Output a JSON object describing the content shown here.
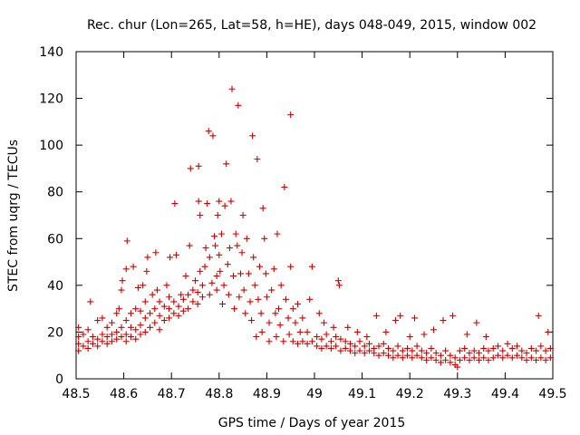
{
  "chart_data": {
    "type": "scatter",
    "title": "Rec. chur (Lon=265, Lat=58, h=HE), days 048-049, 2015, window 002",
    "xlabel": "GPS time / Days of year 2015",
    "ylabel": "STEC from uqrg / TECUs",
    "xlim": [
      48.5,
      49.5
    ],
    "ylim": [
      0,
      140
    ],
    "x_ticks": [
      48.5,
      48.6,
      48.7,
      48.8,
      48.9,
      49.0,
      49.1,
      49.2,
      49.3,
      49.4,
      49.5
    ],
    "x_tick_labels": [
      "48.5",
      "48.6",
      "48.7",
      "48.8",
      "48.9",
      "49",
      "49.1",
      "49.2",
      "49.3",
      "49.4",
      "49.5"
    ],
    "y_ticks": [
      0,
      20,
      40,
      60,
      80,
      100,
      120,
      140
    ],
    "y_tick_labels": [
      "0",
      "20",
      "40",
      "60",
      "80",
      "100",
      "120",
      "140"
    ],
    "grid": false,
    "marker": "+",
    "marker_color": "#cc0000",
    "points": [
      [
        48.505,
        12
      ],
      [
        48.505,
        15
      ],
      [
        48.505,
        18
      ],
      [
        48.505,
        22
      ],
      [
        48.515,
        14
      ],
      [
        48.515,
        19
      ],
      [
        48.525,
        13
      ],
      [
        48.525,
        16
      ],
      [
        48.525,
        21
      ],
      [
        48.53,
        33
      ],
      [
        48.535,
        15
      ],
      [
        48.535,
        18
      ],
      [
        48.545,
        14
      ],
      [
        48.545,
        17
      ],
      [
        48.545,
        25
      ],
      [
        48.555,
        16
      ],
      [
        48.555,
        19
      ],
      [
        48.555,
        26
      ],
      [
        48.565,
        15
      ],
      [
        48.565,
        18
      ],
      [
        48.565,
        22
      ],
      [
        48.575,
        16
      ],
      [
        48.575,
        19
      ],
      [
        48.575,
        24
      ],
      [
        48.585,
        17
      ],
      [
        48.585,
        20
      ],
      [
        48.585,
        28
      ],
      [
        48.59,
        30
      ],
      [
        48.595,
        18
      ],
      [
        48.595,
        22
      ],
      [
        48.595,
        38
      ],
      [
        48.597,
        42
      ],
      [
        48.605,
        16
      ],
      [
        48.605,
        19
      ],
      [
        48.605,
        25
      ],
      [
        48.605,
        47
      ],
      [
        48.607,
        59
      ],
      [
        48.615,
        18
      ],
      [
        48.615,
        22
      ],
      [
        48.615,
        28
      ],
      [
        48.62,
        48
      ],
      [
        48.625,
        17
      ],
      [
        48.625,
        21
      ],
      [
        48.625,
        30
      ],
      [
        48.63,
        39
      ],
      [
        48.635,
        19
      ],
      [
        48.635,
        23
      ],
      [
        48.635,
        29
      ],
      [
        48.64,
        40
      ],
      [
        48.645,
        20
      ],
      [
        48.645,
        26
      ],
      [
        48.645,
        33
      ],
      [
        48.648,
        46
      ],
      [
        48.65,
        52
      ],
      [
        48.655,
        22
      ],
      [
        48.655,
        28
      ],
      [
        48.66,
        36
      ],
      [
        48.665,
        24
      ],
      [
        48.665,
        30
      ],
      [
        48.667,
        54
      ],
      [
        48.67,
        38
      ],
      [
        48.675,
        21
      ],
      [
        48.675,
        27
      ],
      [
        48.675,
        33
      ],
      [
        48.685,
        25
      ],
      [
        48.685,
        31
      ],
      [
        48.69,
        40
      ],
      [
        48.695,
        26
      ],
      [
        48.695,
        30
      ],
      [
        48.695,
        35
      ],
      [
        48.697,
        52
      ],
      [
        48.705,
        28
      ],
      [
        48.705,
        33
      ],
      [
        48.707,
        75
      ],
      [
        48.71,
        53
      ],
      [
        48.715,
        27
      ],
      [
        48.715,
        31
      ],
      [
        48.72,
        36
      ],
      [
        48.725,
        29
      ],
      [
        48.725,
        34
      ],
      [
        48.73,
        44
      ],
      [
        48.735,
        30
      ],
      [
        48.735,
        36
      ],
      [
        48.738,
        57
      ],
      [
        48.74,
        90
      ],
      [
        48.745,
        33
      ],
      [
        48.745,
        38
      ],
      [
        48.75,
        42
      ],
      [
        48.755,
        32
      ],
      [
        48.755,
        37
      ],
      [
        48.757,
        76
      ],
      [
        48.757,
        91
      ],
      [
        48.76,
        46
      ],
      [
        48.76,
        70
      ],
      [
        48.765,
        35
      ],
      [
        48.765,
        40
      ],
      [
        48.77,
        48
      ],
      [
        48.772,
        56
      ],
      [
        48.775,
        75
      ],
      [
        48.778,
        106
      ],
      [
        48.78,
        36
      ],
      [
        48.78,
        52
      ],
      [
        48.785,
        41
      ],
      [
        48.787,
        104
      ],
      [
        48.79,
        61
      ],
      [
        48.792,
        57
      ],
      [
        48.795,
        38
      ],
      [
        48.795,
        44
      ],
      [
        48.797,
        70
      ],
      [
        48.8,
        76
      ],
      [
        48.8,
        53
      ],
      [
        48.802,
        46
      ],
      [
        48.805,
        62
      ],
      [
        48.807,
        32
      ],
      [
        48.81,
        40
      ],
      [
        48.812,
        74
      ],
      [
        48.815,
        92
      ],
      [
        48.818,
        49
      ],
      [
        48.82,
        36
      ],
      [
        48.822,
        56
      ],
      [
        48.825,
        76
      ],
      [
        48.827,
        124
      ],
      [
        48.83,
        44
      ],
      [
        48.832,
        30
      ],
      [
        48.835,
        62
      ],
      [
        48.838,
        57
      ],
      [
        48.84,
        117
      ],
      [
        48.842,
        35
      ],
      [
        48.845,
        45
      ],
      [
        48.848,
        54
      ],
      [
        48.85,
        70
      ],
      [
        48.852,
        38
      ],
      [
        48.855,
        28
      ],
      [
        48.858,
        60
      ],
      [
        48.862,
        45
      ],
      [
        48.865,
        33
      ],
      [
        48.868,
        25
      ],
      [
        48.87,
        104
      ],
      [
        48.872,
        52
      ],
      [
        48.875,
        40
      ],
      [
        48.878,
        18
      ],
      [
        48.88,
        94
      ],
      [
        48.882,
        34
      ],
      [
        48.885,
        48
      ],
      [
        48.888,
        28
      ],
      [
        48.89,
        20
      ],
      [
        48.892,
        73
      ],
      [
        48.895,
        60
      ],
      [
        48.898,
        45
      ],
      [
        48.9,
        35
      ],
      [
        48.905,
        24
      ],
      [
        48.905,
        16
      ],
      [
        48.91,
        38
      ],
      [
        48.915,
        47
      ],
      [
        48.918,
        28
      ],
      [
        48.92,
        18
      ],
      [
        48.922,
        62
      ],
      [
        48.925,
        30
      ],
      [
        48.928,
        23
      ],
      [
        48.93,
        40
      ],
      [
        48.935,
        16
      ],
      [
        48.937,
        82
      ],
      [
        48.94,
        34
      ],
      [
        48.945,
        26
      ],
      [
        48.947,
        19
      ],
      [
        48.95,
        113
      ],
      [
        48.95,
        48
      ],
      [
        48.955,
        30
      ],
      [
        48.955,
        16
      ],
      [
        48.96,
        24
      ],
      [
        48.965,
        15
      ],
      [
        48.965,
        32
      ],
      [
        48.97,
        20
      ],
      [
        48.975,
        16
      ],
      [
        48.975,
        26
      ],
      [
        48.985,
        15
      ],
      [
        48.985,
        20
      ],
      [
        48.99,
        34
      ],
      [
        48.995,
        48
      ],
      [
        48.995,
        16
      ],
      [
        49.005,
        14
      ],
      [
        49.005,
        18
      ],
      [
        49.01,
        28
      ],
      [
        49.015,
        13
      ],
      [
        49.015,
        17
      ],
      [
        49.02,
        24
      ],
      [
        49.025,
        14
      ],
      [
        49.025,
        19
      ],
      [
        49.035,
        13
      ],
      [
        49.035,
        16
      ],
      [
        49.04,
        22
      ],
      [
        49.045,
        14
      ],
      [
        49.045,
        18
      ],
      [
        49.05,
        42
      ],
      [
        49.052,
        40
      ],
      [
        49.055,
        12
      ],
      [
        49.055,
        17
      ],
      [
        49.065,
        13
      ],
      [
        49.065,
        16
      ],
      [
        49.07,
        22
      ],
      [
        49.075,
        12
      ],
      [
        49.075,
        15
      ],
      [
        49.085,
        11
      ],
      [
        49.085,
        14
      ],
      [
        49.09,
        20
      ],
      [
        49.095,
        12
      ],
      [
        49.095,
        16
      ],
      [
        49.105,
        11
      ],
      [
        49.105,
        14
      ],
      [
        49.11,
        18
      ],
      [
        49.115,
        12
      ],
      [
        49.115,
        15
      ],
      [
        49.125,
        11
      ],
      [
        49.125,
        13
      ],
      [
        49.13,
        27
      ],
      [
        49.135,
        10
      ],
      [
        49.135,
        14
      ],
      [
        49.145,
        11
      ],
      [
        49.145,
        15
      ],
      [
        49.15,
        20
      ],
      [
        49.155,
        10
      ],
      [
        49.155,
        13
      ],
      [
        49.165,
        9
      ],
      [
        49.165,
        12
      ],
      [
        49.17,
        25
      ],
      [
        49.175,
        10
      ],
      [
        49.175,
        14
      ],
      [
        49.18,
        27
      ],
      [
        49.185,
        9
      ],
      [
        49.185,
        12
      ],
      [
        49.195,
        10
      ],
      [
        49.195,
        13
      ],
      [
        49.2,
        18
      ],
      [
        49.205,
        9
      ],
      [
        49.205,
        12
      ],
      [
        49.21,
        26
      ],
      [
        49.215,
        10
      ],
      [
        49.215,
        14
      ],
      [
        49.225,
        9
      ],
      [
        49.225,
        12
      ],
      [
        49.23,
        19
      ],
      [
        49.235,
        8
      ],
      [
        49.235,
        11
      ],
      [
        49.245,
        9
      ],
      [
        49.245,
        13
      ],
      [
        49.25,
        21
      ],
      [
        49.255,
        8
      ],
      [
        49.255,
        11
      ],
      [
        49.265,
        7
      ],
      [
        49.265,
        10
      ],
      [
        49.27,
        25
      ],
      [
        49.275,
        8
      ],
      [
        49.275,
        12
      ],
      [
        49.285,
        7
      ],
      [
        49.285,
        10
      ],
      [
        49.29,
        27
      ],
      [
        49.295,
        6
      ],
      [
        49.295,
        9
      ],
      [
        49.3,
        5
      ],
      [
        49.305,
        8
      ],
      [
        49.305,
        12
      ],
      [
        49.315,
        9
      ],
      [
        49.315,
        13
      ],
      [
        49.32,
        19
      ],
      [
        49.325,
        8
      ],
      [
        49.325,
        11
      ],
      [
        49.335,
        9
      ],
      [
        49.335,
        12
      ],
      [
        49.34,
        24
      ],
      [
        49.345,
        8
      ],
      [
        49.345,
        11
      ],
      [
        49.355,
        9
      ],
      [
        49.355,
        13
      ],
      [
        49.36,
        18
      ],
      [
        49.365,
        8
      ],
      [
        49.365,
        12
      ],
      [
        49.375,
        9
      ],
      [
        49.375,
        13
      ],
      [
        49.385,
        10
      ],
      [
        49.385,
        14
      ],
      [
        49.395,
        9
      ],
      [
        49.395,
        12
      ],
      [
        49.405,
        10
      ],
      [
        49.405,
        15
      ],
      [
        49.415,
        9
      ],
      [
        49.415,
        13
      ],
      [
        49.425,
        10
      ],
      [
        49.425,
        14
      ],
      [
        49.435,
        9
      ],
      [
        49.435,
        12
      ],
      [
        49.445,
        8
      ],
      [
        49.445,
        11
      ],
      [
        49.455,
        9
      ],
      [
        49.455,
        13
      ],
      [
        49.465,
        8
      ],
      [
        49.465,
        12
      ],
      [
        49.47,
        27
      ],
      [
        49.475,
        9
      ],
      [
        49.475,
        14
      ],
      [
        49.485,
        8
      ],
      [
        49.485,
        12
      ],
      [
        49.49,
        20
      ],
      [
        49.495,
        9
      ],
      [
        49.495,
        13
      ]
    ]
  }
}
